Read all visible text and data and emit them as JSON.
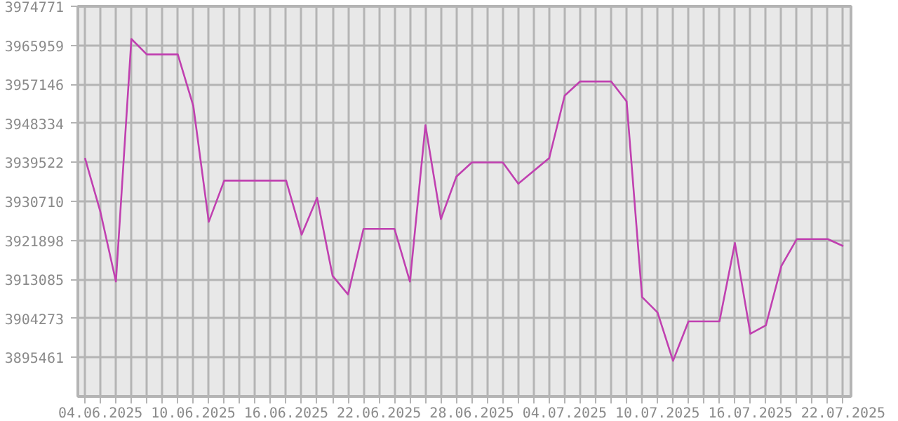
{
  "chart_data": {
    "type": "line",
    "x": [
      "2025-06-03",
      "2025-06-04",
      "2025-06-05",
      "2025-06-06",
      "2025-06-07",
      "2025-06-08",
      "2025-06-09",
      "2025-06-10",
      "2025-06-11",
      "2025-06-12",
      "2025-06-13",
      "2025-06-14",
      "2025-06-15",
      "2025-06-16",
      "2025-06-17",
      "2025-06-18",
      "2025-06-19",
      "2025-06-20",
      "2025-06-21",
      "2025-06-22",
      "2025-06-23",
      "2025-06-24",
      "2025-06-25",
      "2025-06-26",
      "2025-06-27",
      "2025-06-28",
      "2025-06-29",
      "2025-06-30",
      "2025-07-01",
      "2025-07-02",
      "2025-07-03",
      "2025-07-04",
      "2025-07-05",
      "2025-07-06",
      "2025-07-07",
      "2025-07-08",
      "2025-07-09",
      "2025-07-10",
      "2025-07-11",
      "2025-07-12",
      "2025-07-13",
      "2025-07-14",
      "2025-07-15",
      "2025-07-16",
      "2025-07-17",
      "2025-07-18",
      "2025-07-19",
      "2025-07-20",
      "2025-07-21",
      "2025-07-22"
    ],
    "series": [
      {
        "color": "#c040b0",
        "values": [
          3940500,
          3928300,
          3912600,
          3967400,
          3963900,
          3963900,
          3963900,
          3952300,
          3926100,
          3935400,
          3935400,
          3935400,
          3935400,
          3935400,
          3923200,
          3931500,
          3913900,
          3909700,
          3924500,
          3924500,
          3924500,
          3912600,
          3947900,
          3926700,
          3936300,
          3939500,
          3939500,
          3939500,
          3934700,
          3937600,
          3940500,
          3954600,
          3957800,
          3957800,
          3957800,
          3953300,
          3909100,
          3905600,
          3894700,
          3903600,
          3903600,
          3903600,
          3921300,
          3900800,
          3902700,
          3916100,
          3922200,
          3922200,
          3922200,
          3920600
        ]
      }
    ],
    "xlim": [
      "2025-06-02T13:00",
      "2025-07-22T12:00"
    ],
    "ylim": [
      3886649,
      3974771
    ],
    "yticks": [
      3895461,
      3904273,
      3913085,
      3921898,
      3930710,
      3939522,
      3948334,
      3957146,
      3965959,
      3974771
    ],
    "xticks": [
      {
        "value": "2025-06-03",
        "label": null
      },
      {
        "value": "2025-06-04",
        "label": "04.06.2025"
      },
      {
        "value": "2025-06-05",
        "label": null
      },
      {
        "value": "2025-06-06",
        "label": null
      },
      {
        "value": "2025-06-07",
        "label": null
      },
      {
        "value": "2025-06-08",
        "label": null
      },
      {
        "value": "2025-06-09",
        "label": null
      },
      {
        "value": "2025-06-10",
        "label": "10.06.2025"
      },
      {
        "value": "2025-06-11",
        "label": null
      },
      {
        "value": "2025-06-12",
        "label": null
      },
      {
        "value": "2025-06-13",
        "label": null
      },
      {
        "value": "2025-06-14",
        "label": null
      },
      {
        "value": "2025-06-15",
        "label": null
      },
      {
        "value": "2025-06-16",
        "label": "16.06.2025"
      },
      {
        "value": "2025-06-17",
        "label": null
      },
      {
        "value": "2025-06-18",
        "label": null
      },
      {
        "value": "2025-06-19",
        "label": null
      },
      {
        "value": "2025-06-20",
        "label": null
      },
      {
        "value": "2025-06-21",
        "label": null
      },
      {
        "value": "2025-06-22",
        "label": "22.06.2025"
      },
      {
        "value": "2025-06-23",
        "label": null
      },
      {
        "value": "2025-06-24",
        "label": null
      },
      {
        "value": "2025-06-25",
        "label": null
      },
      {
        "value": "2025-06-26",
        "label": null
      },
      {
        "value": "2025-06-27",
        "label": null
      },
      {
        "value": "2025-06-28",
        "label": "28.06.2025"
      },
      {
        "value": "2025-06-29",
        "label": null
      },
      {
        "value": "2025-06-30",
        "label": null
      },
      {
        "value": "2025-07-01",
        "label": null
      },
      {
        "value": "2025-07-02",
        "label": null
      },
      {
        "value": "2025-07-03",
        "label": null
      },
      {
        "value": "2025-07-04",
        "label": "04.07.2025"
      },
      {
        "value": "2025-07-05",
        "label": null
      },
      {
        "value": "2025-07-06",
        "label": null
      },
      {
        "value": "2025-07-07",
        "label": null
      },
      {
        "value": "2025-07-08",
        "label": null
      },
      {
        "value": "2025-07-09",
        "label": null
      },
      {
        "value": "2025-07-10",
        "label": "10.07.2025"
      },
      {
        "value": "2025-07-11",
        "label": null
      },
      {
        "value": "2025-07-12",
        "label": null
      },
      {
        "value": "2025-07-13",
        "label": null
      },
      {
        "value": "2025-07-14",
        "label": null
      },
      {
        "value": "2025-07-15",
        "label": null
      },
      {
        "value": "2025-07-16",
        "label": "16.07.2025"
      },
      {
        "value": "2025-07-17",
        "label": null
      },
      {
        "value": "2025-07-18",
        "label": null
      },
      {
        "value": "2025-07-19",
        "label": null
      },
      {
        "value": "2025-07-20",
        "label": null
      },
      {
        "value": "2025-07-21",
        "label": null
      },
      {
        "value": "2025-07-22",
        "label": "22.07.2025"
      }
    ],
    "grid": true,
    "marker": "none",
    "line_style": "solid"
  }
}
